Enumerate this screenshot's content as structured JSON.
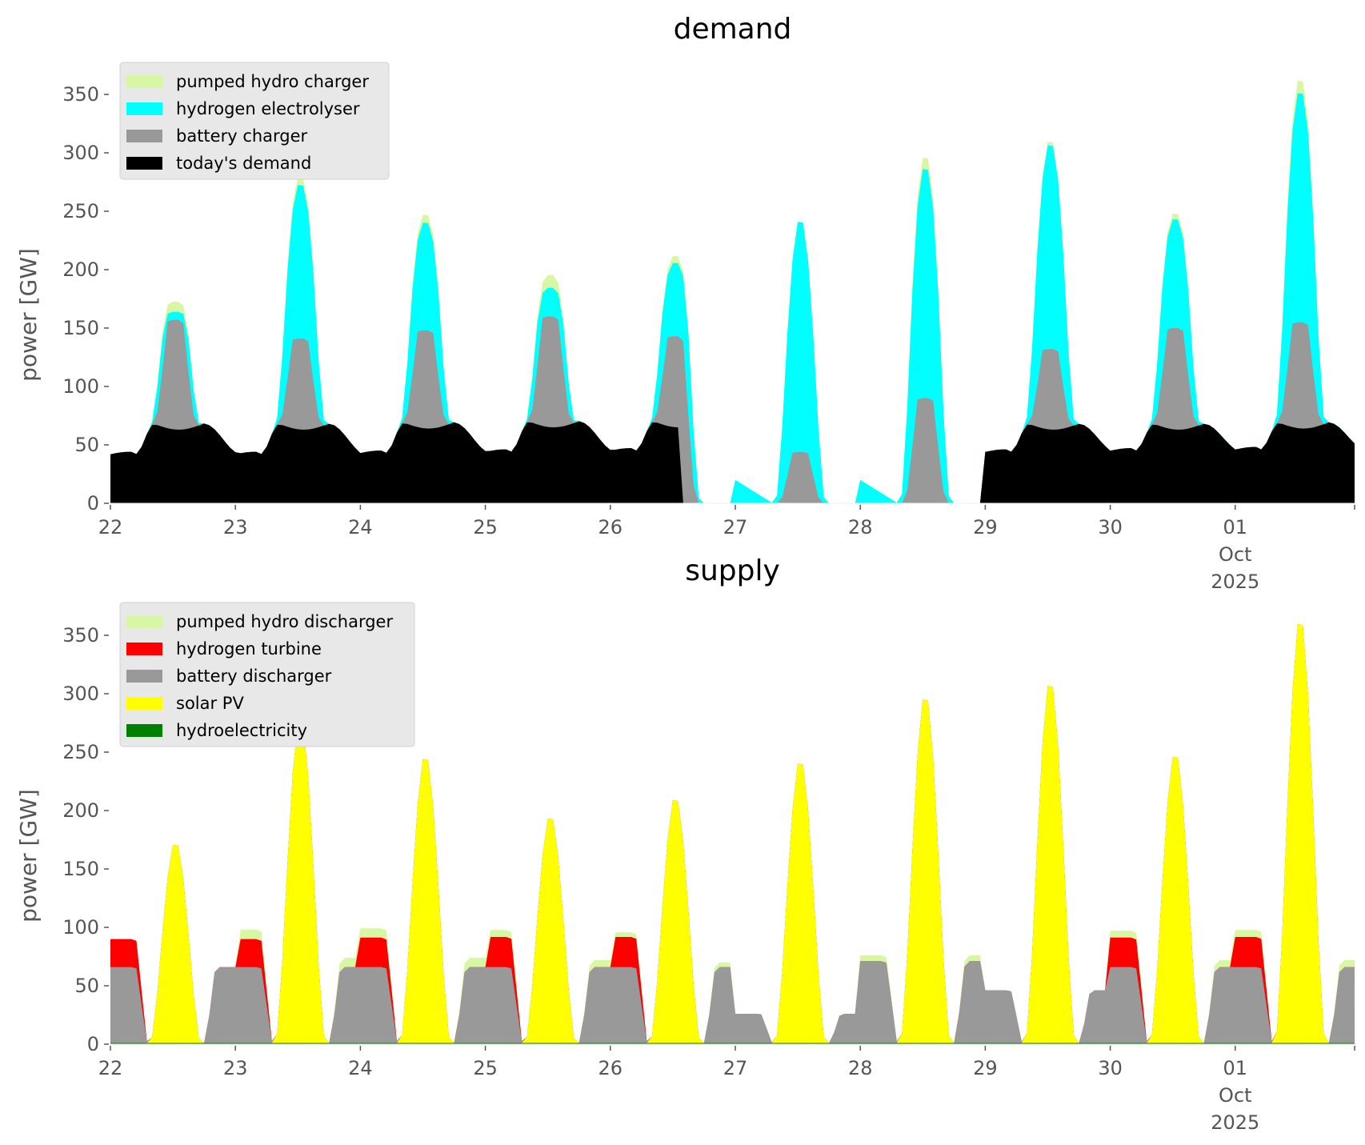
{
  "colors": {
    "pumped_hydro": "#d8f7a4",
    "hydrogen_electrolyser": "#00ffff",
    "battery": "#999999",
    "demand": "#000000",
    "hydrogen_turbine": "#ff0000",
    "solar": "#ffff00",
    "hydro": "#008000"
  },
  "chart_data": [
    {
      "type": "area",
      "title": "demand",
      "ylabel": "power [GW]",
      "xlabel": "",
      "ylim": [
        0,
        370
      ],
      "yticks": [
        "0",
        "50",
        "100",
        "150",
        "200",
        "250",
        "300",
        "350"
      ],
      "xticks": [
        "22",
        "23",
        "24",
        "25",
        "26",
        "27",
        "28",
        "29",
        "30",
        "01"
      ],
      "xtick_extra": [
        "Oct",
        "2025"
      ],
      "legend_position": "top-left",
      "x_days": [
        22,
        23,
        24,
        25,
        26,
        27,
        28,
        29,
        30,
        1
      ],
      "series": [
        {
          "name": "today's demand",
          "key": "demand",
          "daily_base": [
            42,
            42,
            43,
            44,
            45,
            0,
            0,
            44,
            45,
            46
          ],
          "daily_peak": [
            68,
            68,
            69,
            70,
            70,
            0,
            0,
            68,
            68,
            69
          ]
        },
        {
          "name": "battery charger",
          "key": "battery",
          "daily_peak_total": [
            157,
            141,
            148,
            160,
            143,
            44,
            90,
            132,
            150,
            155
          ]
        },
        {
          "name": "hydrogen electrolyser",
          "key": "hydrogen_electrolyser",
          "daily_peak_total": [
            164,
            275,
            242,
            185,
            207,
            245,
            290,
            310,
            245,
            355
          ]
        },
        {
          "name": "pumped hydro charger",
          "key": "pumped_hydro",
          "daily_peak_total": [
            173,
            282,
            249,
            196,
            213,
            245,
            300,
            313,
            250,
            366
          ]
        }
      ]
    },
    {
      "type": "area",
      "title": "supply",
      "ylabel": "power [GW]",
      "xlabel": "",
      "ylim": [
        0,
        370
      ],
      "yticks": [
        "0",
        "50",
        "100",
        "150",
        "200",
        "250",
        "300",
        "350"
      ],
      "xticks": [
        "22",
        "23",
        "24",
        "25",
        "26",
        "27",
        "28",
        "29",
        "30",
        "01"
      ],
      "xtick_extra": [
        "Oct",
        "2025"
      ],
      "legend_position": "top-left",
      "series": [
        {
          "name": "hydroelectricity",
          "key": "hydro",
          "daily_value": [
            1,
            1,
            1,
            1,
            1,
            1,
            1,
            1,
            1,
            1
          ]
        },
        {
          "name": "solar PV",
          "key": "solar",
          "daily_peak": [
            173,
            280,
            248,
            196,
            212,
            244,
            300,
            312,
            250,
            366
          ]
        },
        {
          "name": "battery discharger",
          "key": "battery",
          "night_level": [
            65,
            65,
            65,
            65,
            65,
            25,
            70,
            45,
            65,
            65
          ]
        },
        {
          "name": "hydrogen turbine",
          "key": "hydrogen_turbine",
          "night_level": [
            40,
            40,
            42,
            43,
            43,
            0,
            0,
            0,
            42,
            43
          ]
        },
        {
          "name": "pumped hydro discharger",
          "key": "pumped_hydro",
          "night_level": [
            0,
            8,
            8,
            6,
            4,
            0,
            5,
            0,
            6,
            6
          ]
        }
      ]
    }
  ]
}
